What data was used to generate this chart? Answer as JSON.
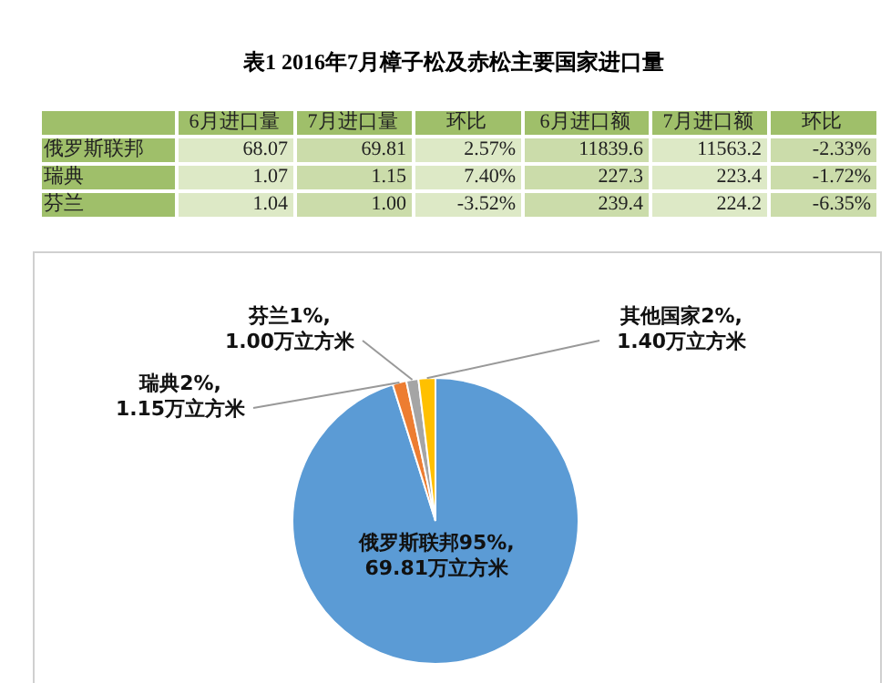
{
  "chart_data": [
    {
      "type": "other",
      "title": "表1  2016年7月樟子松及赤松主要国家进口量",
      "annotations": [
        "6月进口量",
        "7月进口量",
        "环比",
        "6月进口额",
        "7月进口额",
        "环比",
        "俄罗斯联邦",
        "68.07",
        "69.81",
        "2.57%",
        "11839.6",
        "11563.2",
        "-2.33%",
        "瑞典",
        "1.07",
        "1.15",
        "7.40%",
        "227.3",
        "223.4",
        "-1.72%",
        "芬兰",
        "1.04",
        "1.00",
        "-3.52%",
        "239.4",
        "224.2",
        "-6.35%"
      ]
    },
    {
      "type": "pie",
      "categories": [
        "俄罗斯联邦",
        "瑞典",
        "芬兰",
        "其他国家"
      ],
      "values": [
        69.81,
        1.15,
        1.0,
        1.4
      ],
      "colors": [
        "#5b9bd5",
        "#ed7d31",
        "#a5a5a5",
        "#ffc000"
      ],
      "value_labels": [
        "95%,\n69.81万立方米",
        "2%,\n1.15万立方米",
        "1%,\n1.00万立方米",
        "2%,\n1.40万立方米"
      ],
      "legend": false
    }
  ]
}
